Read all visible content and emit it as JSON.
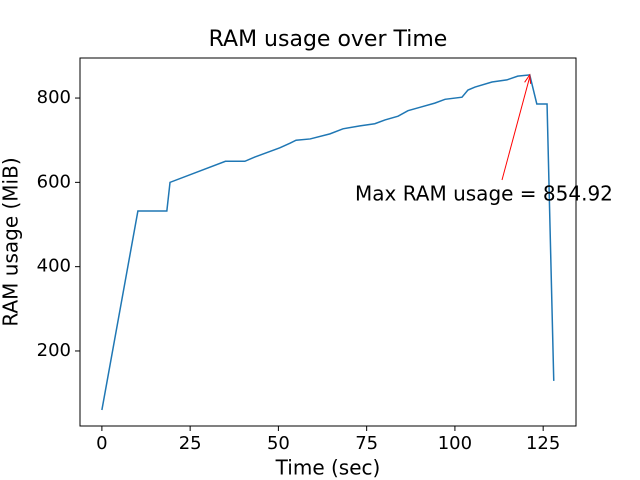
{
  "chart_data": {
    "type": "line",
    "title": "RAM usage over Time",
    "x_label": "Time (sec)",
    "y_label": "RAM usage (MiB)",
    "x": [
      0,
      10.2,
      18.4,
      19.3,
      35,
      40.5,
      43.3,
      50.4,
      53.3,
      55,
      59,
      64.6,
      68.3,
      73.1,
      77.3,
      80.2,
      83.9,
      86.7,
      90.1,
      94.3,
      97.2,
      102,
      103.7,
      105.7,
      110.5,
      114.7,
      117.8,
      121.2,
      123.2,
      126.1,
      128
    ],
    "values": [
      60,
      532,
      532,
      600,
      650,
      650,
      660,
      682,
      693,
      700,
      703,
      715,
      727,
      734,
      739,
      748,
      757,
      770,
      778,
      788,
      797,
      802,
      819,
      826,
      838,
      843,
      852,
      854.92,
      786,
      786,
      129
    ],
    "color": "#1f77b4",
    "xlim": [
      -6.2,
      134.3
    ],
    "ylim": [
      22,
      895
    ],
    "xticks": [
      0,
      25,
      50,
      75,
      100,
      125
    ],
    "yticks": [
      200,
      400,
      600,
      800
    ],
    "annotation": {
      "text": "Max RAM usage = 854.92",
      "color": "#ff0000"
    }
  }
}
